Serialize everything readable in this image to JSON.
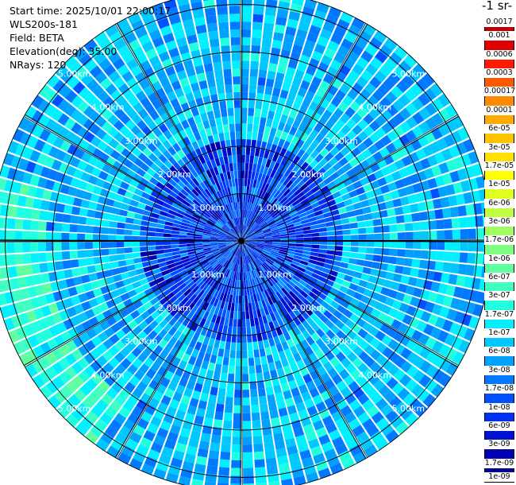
{
  "header": {
    "start_time": "Start time: 2025/10/01 22:00:17",
    "instrument": "WLS200s-181",
    "field": "Field: BETA",
    "elevation": "Elevation(deg): 35.00",
    "nrays": "NRays: 120"
  },
  "colorbar": {
    "units_label": "-1 sr-",
    "ticks": [
      "0.0017",
      "0.001",
      "0.0006",
      "0.0003",
      "0.00017",
      "0.0001",
      "6e-05",
      "3e-05",
      "1.7e-05",
      "1e-05",
      "6e-06",
      "3e-06",
      "1.7e-06",
      "1e-06",
      "6e-07",
      "3e-07",
      "1.7e-07",
      "1e-07",
      "6e-08",
      "3e-08",
      "1.7e-08",
      "1e-08",
      "6e-09",
      "3e-09",
      "1.7e-09",
      "1e-09"
    ],
    "colors": [
      "#c00000",
      "#e00000",
      "#ff1a00",
      "#ff5a00",
      "#ff8a00",
      "#ffaa00",
      "#ffc400",
      "#ffe000",
      "#ffff00",
      "#e0ff20",
      "#c0ff40",
      "#a0ff60",
      "#80ff80",
      "#60ffa0",
      "#40ffc0",
      "#20ffe0",
      "#00f0ff",
      "#00c8ff",
      "#00a0ff",
      "#0078ff",
      "#0050ff",
      "#0030f0",
      "#0010d0",
      "#0000b0",
      "#000090"
    ]
  },
  "chart_data": {
    "type": "heatmap",
    "projection": "polar PPI",
    "field": "BETA",
    "elevation_deg": 35.0,
    "n_rays": 120,
    "range_rings_km": [
      1,
      2,
      3,
      4,
      5
    ],
    "range_ring_labels": [
      "1.00km",
      "2.00km",
      "3.00km",
      "4.00km",
      "5.00km"
    ],
    "max_range_km": 5.3,
    "color_scale": "log",
    "value_range": [
      1e-09,
      0.0017
    ],
    "grid": true,
    "typical_value": 6e-08,
    "enhanced_sector": {
      "azimuth_deg": [
        215,
        285
      ],
      "range_km": [
        4.2,
        5.3
      ],
      "value": 1.7e-07
    }
  }
}
